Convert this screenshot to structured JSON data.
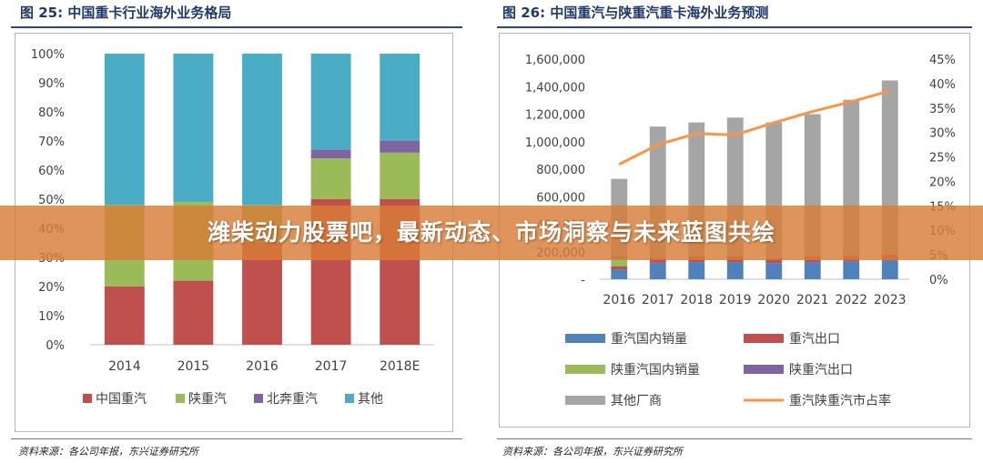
{
  "figures": {
    "left": {
      "title": "图 25: 中国重卡行业海外业务格局",
      "source": "资料来源：各公司年报，东兴证券研究所"
    },
    "right": {
      "title": "图 26: 中国重汽与陕重汽重卡海外业务预测",
      "source": "资料来源：各公司年报，东兴证券研究所"
    }
  },
  "banner": {
    "text": "潍柴动力股票吧，最新动态、市场洞察与未来蓝图共绘"
  },
  "chart_data": [
    {
      "type": "bar",
      "stacked": true,
      "percent_stacked": true,
      "categories": [
        "2014",
        "2015",
        "2016",
        "2017",
        "2018E"
      ],
      "ylim": [
        0,
        100
      ],
      "yticks": [
        "0%",
        "10%",
        "20%",
        "30%",
        "40%",
        "50%",
        "60%",
        "70%",
        "80%",
        "90%",
        "100%"
      ],
      "legend_position": "bottom",
      "series": [
        {
          "name": "中国重汽",
          "color": "#c0504d",
          "values": [
            20,
            22,
            35,
            50,
            50
          ]
        },
        {
          "name": "陕重汽",
          "color": "#9bbb59",
          "values": [
            28,
            27,
            13,
            14,
            16
          ]
        },
        {
          "name": "北奔重汽",
          "color": "#8064a2",
          "values": [
            0,
            0,
            0,
            3,
            4
          ]
        },
        {
          "name": "其他",
          "color": "#4bacc6",
          "values": [
            52,
            51,
            52,
            33,
            30
          ]
        }
      ]
    },
    {
      "type": "bar",
      "stacked": true,
      "secondary_axis": true,
      "categories": [
        "2016",
        "2017",
        "2018",
        "2019",
        "2020",
        "2021",
        "2022",
        "2023"
      ],
      "ylim": [
        0,
        1600000
      ],
      "yticks": [
        "-",
        "200,000",
        "400,000",
        "600,000",
        "800,000",
        "1,000,000",
        "1,200,000",
        "1,400,000",
        "1,600,000"
      ],
      "y2lim": [
        0,
        45
      ],
      "y2ticks": [
        "0%",
        "5%",
        "10%",
        "15%",
        "20%",
        "25%",
        "30%",
        "35%",
        "40%",
        "45%"
      ],
      "legend_position": "bottom",
      "series": [
        {
          "name": "重汽国内销量",
          "color": "#4f81bd",
          "values": [
            70000,
            120000,
            125000,
            125000,
            118000,
            125000,
            130000,
            135000
          ]
        },
        {
          "name": "重汽出口",
          "color": "#c0504d",
          "values": [
            25000,
            35000,
            40000,
            40000,
            35000,
            40000,
            40000,
            45000
          ]
        },
        {
          "name": "陕重汽国内销量",
          "color": "#9bbb59",
          "values": [
            55000,
            0,
            0,
            0,
            0,
            0,
            0,
            0
          ]
        },
        {
          "name": "陕重汽出口",
          "color": "#8064a2",
          "values": [
            15000,
            0,
            0,
            0,
            0,
            0,
            0,
            0
          ]
        },
        {
          "name": "其他厂商",
          "color": "#a5a5a5",
          "values": [
            565000,
            955000,
            975000,
            1010000,
            987000,
            1035000,
            1135000,
            1265000
          ]
        }
      ],
      "line_series": [
        {
          "name": "重汽陕重汽市占率",
          "color": "#f79646",
          "axis": "right",
          "values": [
            23.5,
            27.5,
            29.8,
            29.5,
            32,
            34.3,
            36.3,
            38.5
          ]
        }
      ]
    }
  ]
}
